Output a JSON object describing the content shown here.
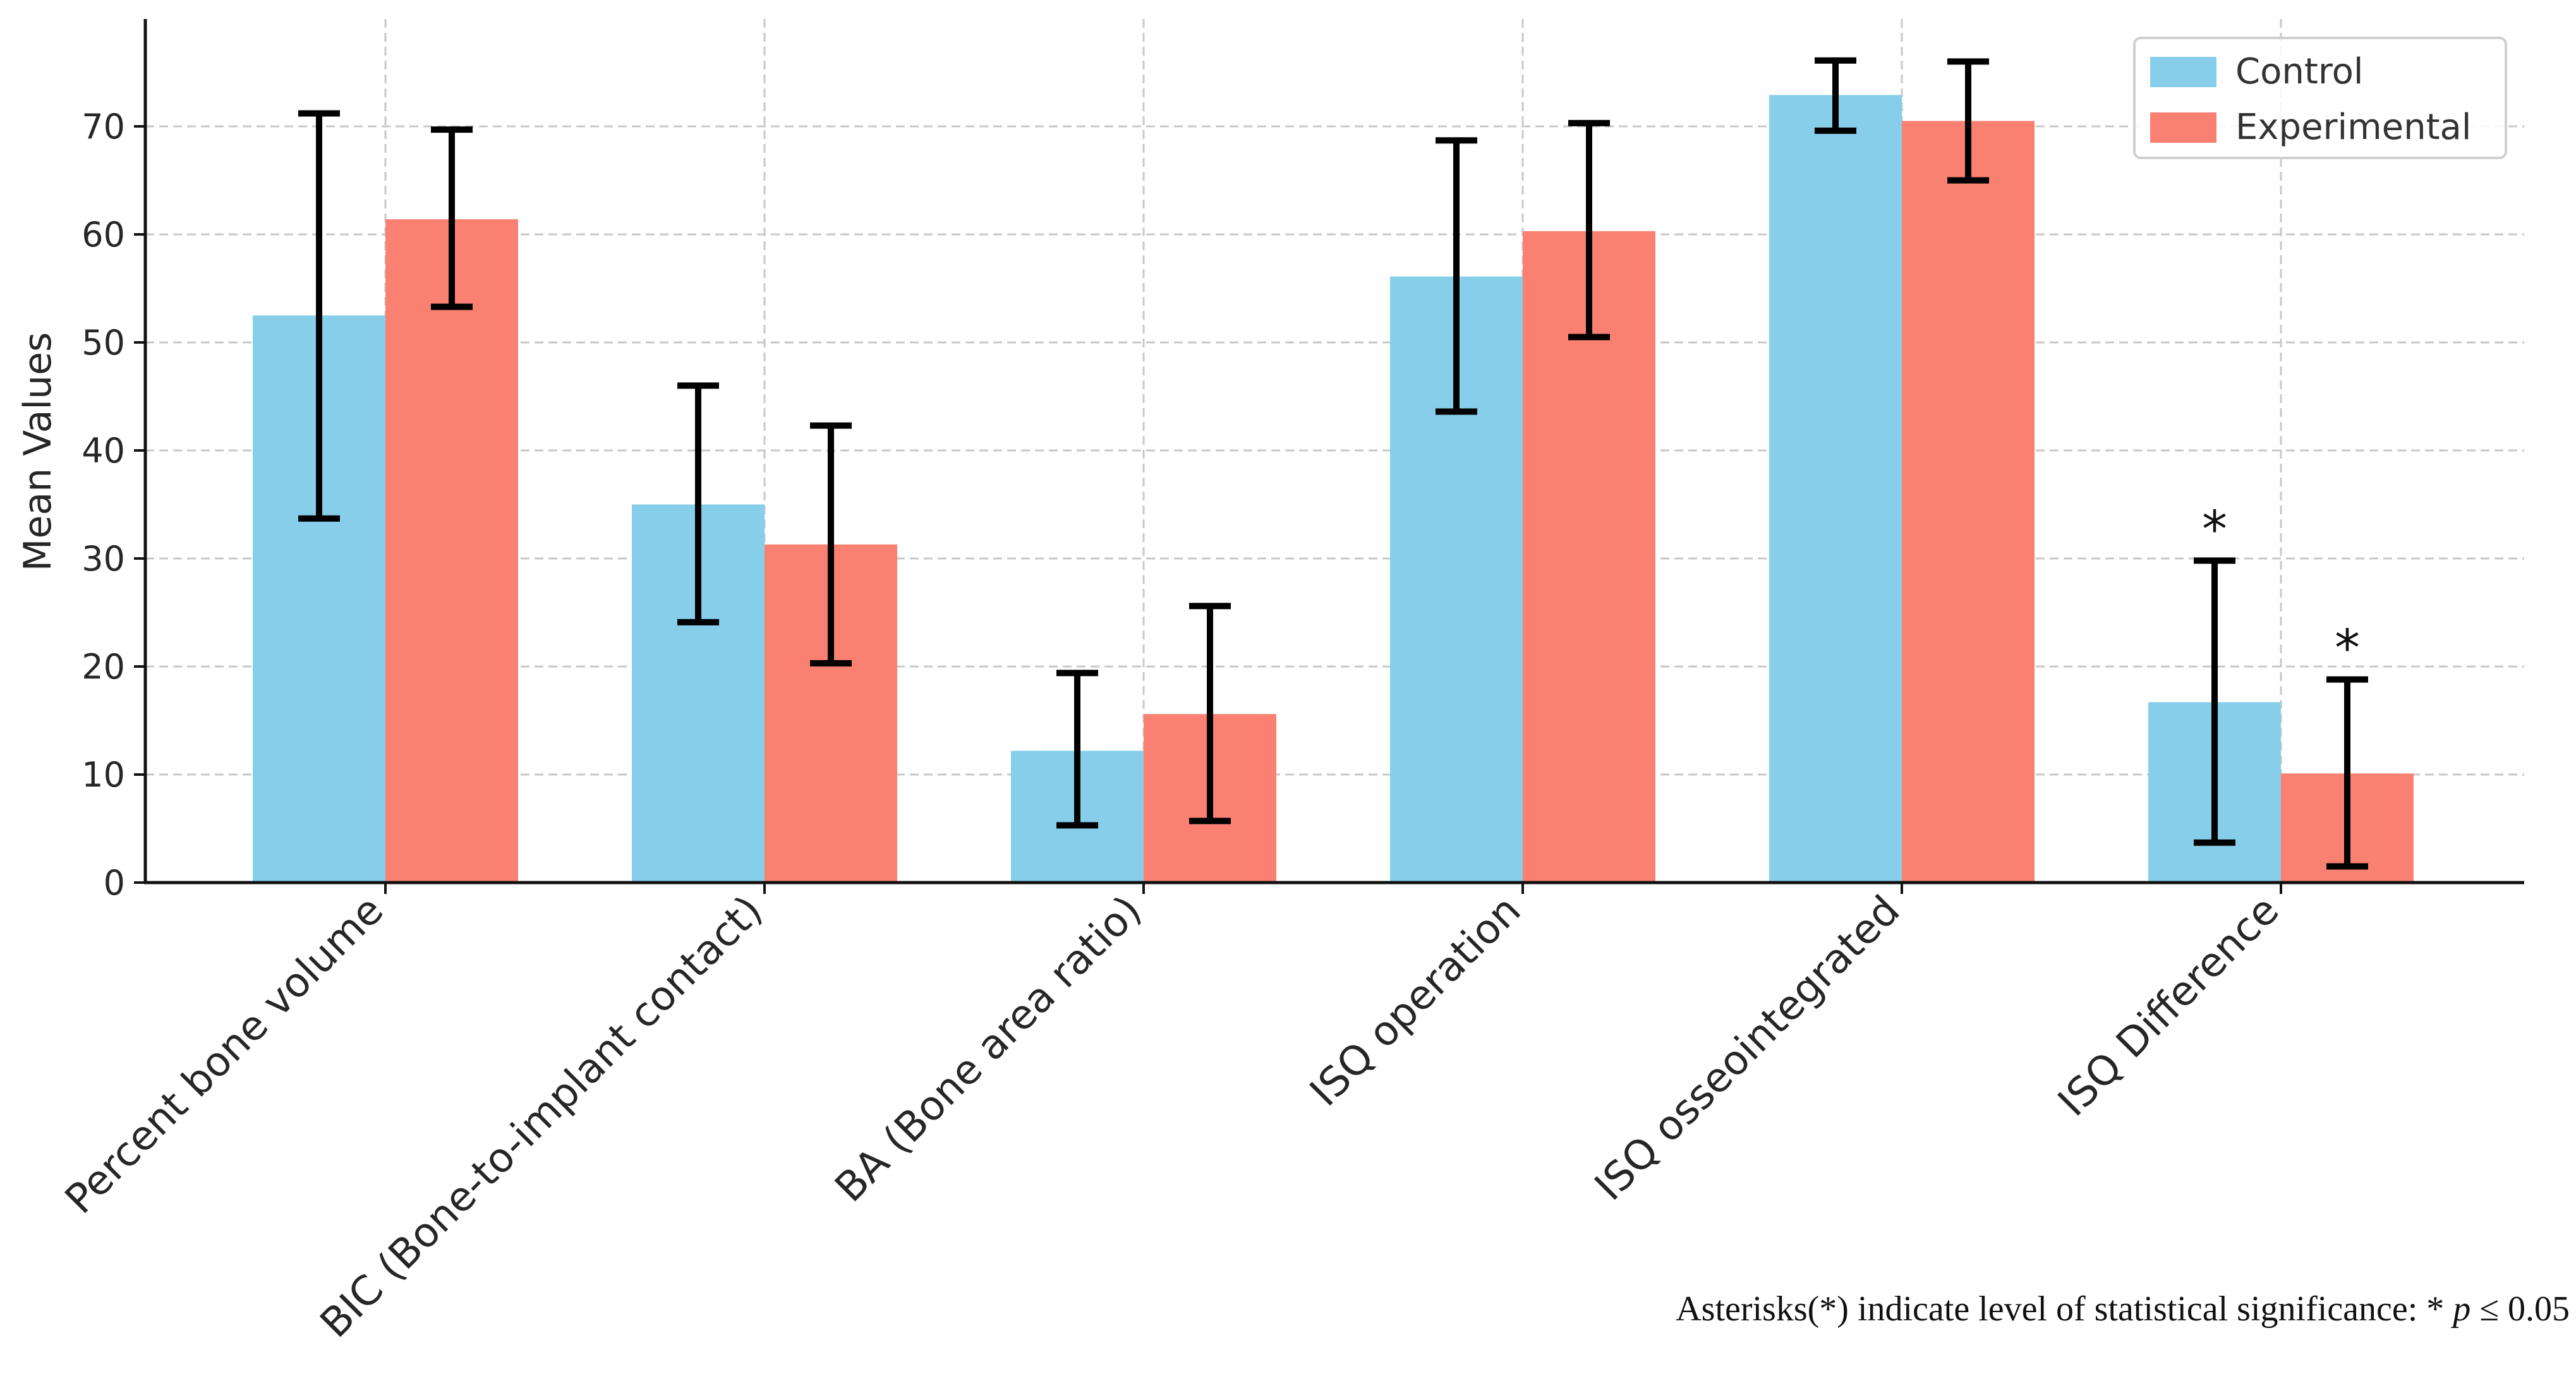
{
  "chart_data": {
    "type": "bar",
    "title": "",
    "xlabel": "",
    "ylabel": "Mean Values",
    "ylim": [
      0,
      80
    ],
    "yticks": [
      0,
      10,
      20,
      30,
      40,
      50,
      60,
      70
    ],
    "grid": true,
    "legend_position": "top-right",
    "categories": [
      "Percent bone volume",
      "BIC (Bone-to-implant contact)",
      "BA (Bone area ratio)",
      "ISQ operation",
      "ISQ osseointegrated",
      "ISQ Difference"
    ],
    "series": [
      {
        "name": "Control",
        "color": "#87CEEB",
        "values": [
          52.5,
          35.0,
          12.2,
          56.1,
          72.9,
          16.7
        ],
        "err_low": [
          33.7,
          24.1,
          5.3,
          43.6,
          69.6,
          3.7
        ],
        "err_high": [
          71.2,
          46.0,
          19.4,
          68.7,
          76.1,
          29.8
        ],
        "significance": [
          "",
          "",
          "",
          "",
          "",
          "*"
        ]
      },
      {
        "name": "Experimental",
        "color": "#FA8072",
        "values": [
          61.4,
          31.3,
          15.6,
          60.3,
          70.5,
          10.1
        ],
        "err_low": [
          53.3,
          20.3,
          5.7,
          50.5,
          65.0,
          1.5
        ],
        "err_high": [
          69.7,
          42.3,
          25.6,
          70.3,
          76.0,
          18.8
        ],
        "significance": [
          "",
          "",
          "",
          "",
          "",
          "*"
        ]
      }
    ]
  },
  "footnote": {
    "prefix": "Asterisks(*) indicate level of statistical significance: * ",
    "p_symbol": "p",
    "suffix": " ≤ 0.05"
  }
}
